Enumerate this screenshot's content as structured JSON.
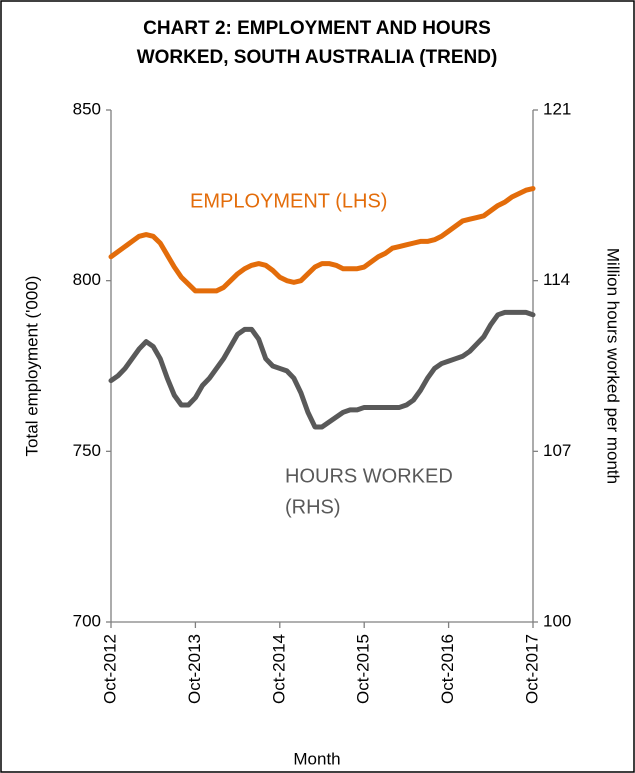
{
  "chart_data": {
    "type": "line",
    "title": [
      "CHART 2: EMPLOYMENT AND HOURS",
      "WORKED, SOUTH AUSTRALIA (TREND)"
    ],
    "xlabel": "Month",
    "ylabel": "Total employment ('000)",
    "y2label": "Million hours worked per month",
    "categories": [
      "Oct-2012",
      null,
      null,
      null,
      null,
      null,
      null,
      null,
      null,
      null,
      null,
      null,
      "Oct-2013",
      null,
      null,
      null,
      null,
      null,
      null,
      null,
      null,
      null,
      null,
      null,
      "Oct-2014",
      null,
      null,
      null,
      null,
      null,
      null,
      null,
      null,
      null,
      null,
      null,
      "Oct-2015",
      null,
      null,
      null,
      null,
      null,
      null,
      null,
      null,
      null,
      null,
      null,
      "Oct-2016",
      null,
      null,
      null,
      null,
      null,
      null,
      null,
      null,
      null,
      null,
      null,
      "Oct-2017"
    ],
    "series": [
      {
        "name": "EMPLOYMENT  (LHS)",
        "color": "#e36c0a",
        "values": [
          807,
          808.5,
          810,
          811.5,
          813,
          813.5,
          813,
          811,
          807.5,
          804,
          801,
          799,
          797,
          797,
          797,
          797,
          798,
          800,
          802,
          803.5,
          804.5,
          805,
          804.5,
          803,
          801,
          800,
          799.5,
          800,
          802,
          804,
          805,
          805,
          804.5,
          803.5,
          803.5,
          803.5,
          804,
          805.5,
          807,
          808,
          809.5,
          810,
          810.5,
          811,
          811.5,
          811.5,
          812,
          813,
          814.5,
          816,
          817.5,
          818,
          818.5,
          819,
          820.5,
          822,
          823,
          824.5,
          825.5,
          826.5,
          827
        ]
      },
      {
        "name": [
          "HOURS WORKED",
          "(RHS)"
        ],
        "color": "#595959",
        "axis": "y2",
        "values": [
          109.9,
          110.1,
          110.4,
          110.8,
          111.2,
          111.5,
          111.3,
          110.8,
          110,
          109.3,
          108.9,
          108.9,
          109.2,
          109.7,
          110,
          110.4,
          110.8,
          111.3,
          111.8,
          112,
          112,
          111.6,
          110.8,
          110.5,
          110.4,
          110.3,
          110,
          109.4,
          108.6,
          108,
          108,
          108.2,
          108.4,
          108.6,
          108.7,
          108.7,
          108.8,
          108.8,
          108.8,
          108.8,
          108.8,
          108.8,
          108.9,
          109.1,
          109.5,
          110,
          110.4,
          110.6,
          110.7,
          110.8,
          110.9,
          111.1,
          111.4,
          111.7,
          112.2,
          112.6,
          112.7,
          112.7,
          112.7,
          112.7,
          112.6
        ]
      }
    ],
    "ylim": [
      700,
      850
    ],
    "yticks": [
      700,
      750,
      800,
      850
    ],
    "y2lim": [
      100,
      121
    ],
    "y2ticks": [
      100,
      107,
      114,
      121
    ],
    "grid": false
  }
}
